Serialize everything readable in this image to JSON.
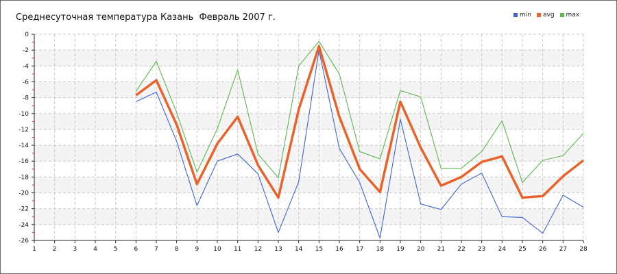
{
  "chart_data": {
    "type": "line",
    "title": "Среднесуточная температура Казань  Февраль 2007 г.",
    "categories": [
      "1",
      "2",
      "3",
      "4",
      "5",
      "6",
      "7",
      "8",
      "9",
      "10",
      "11",
      "12",
      "13",
      "14",
      "15",
      "16",
      "17",
      "18",
      "19",
      "20",
      "21",
      "22",
      "23",
      "24",
      "25",
      "26",
      "27",
      "28"
    ],
    "ylim": [
      -26,
      0
    ],
    "yticks": [
      0,
      -2,
      -4,
      -6,
      -8,
      -10,
      -12,
      -14,
      -16,
      -18,
      -20,
      -22,
      -24,
      -26
    ],
    "grid": true,
    "legend_position": "top-right",
    "series": [
      {
        "name": "min",
        "color": "#3f63d6",
        "values": [
          null,
          null,
          null,
          null,
          null,
          -8.5,
          -7.3,
          -13.5,
          -21.6,
          -16.0,
          -15.1,
          -17.6,
          -25.0,
          -18.6,
          -2.0,
          -14.4,
          -18.7,
          -25.7,
          -10.7,
          -21.4,
          -22.1,
          -18.9,
          -17.5,
          -23.0,
          -23.1,
          -25.1,
          -20.3,
          -21.8
        ]
      },
      {
        "name": "avg",
        "color": "#e8622a",
        "values": [
          null,
          null,
          null,
          null,
          null,
          -7.7,
          -5.8,
          -11.4,
          -18.9,
          -13.8,
          -10.4,
          -16.5,
          -20.6,
          -9.5,
          -1.5,
          -10.4,
          -17.0,
          -19.9,
          -8.5,
          -14.3,
          -19.1,
          -18.0,
          -16.1,
          -15.4,
          -20.6,
          -20.4,
          -17.9,
          -15.9
        ]
      },
      {
        "name": "max",
        "color": "#5cb84c",
        "values": [
          null,
          null,
          null,
          null,
          null,
          -7.2,
          -3.4,
          -9.9,
          -17.4,
          -11.9,
          -4.5,
          -15.1,
          -18.1,
          -4.0,
          -0.9,
          -5.0,
          -14.8,
          -15.7,
          -7.1,
          -7.9,
          -16.9,
          -16.9,
          -14.8,
          -10.9,
          -18.7,
          -15.9,
          -15.3,
          -12.5
        ]
      }
    ]
  }
}
